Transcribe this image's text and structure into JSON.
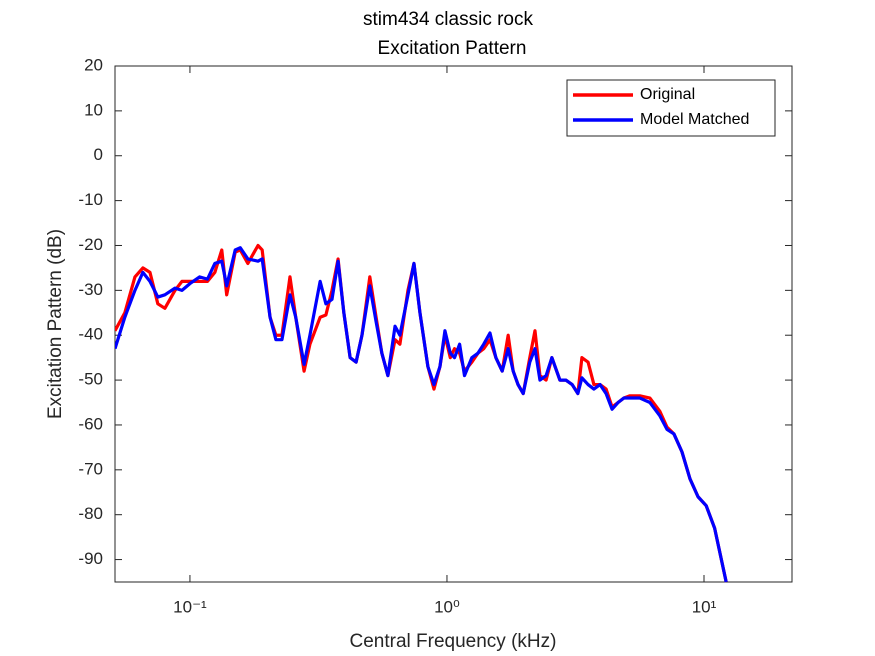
{
  "chart_data": {
    "type": "line",
    "title": "stim434 classic rock",
    "subtitle": "Excitation Pattern",
    "x_label": "Central Frequency (kHz)",
    "y_label": "Excitation Pattern (dB)",
    "x_scale": "log",
    "xlim": [
      0.0511,
      22
    ],
    "ylim": [
      -95,
      20
    ],
    "xticks": [
      {
        "value": 0.1,
        "label": "10⁻¹"
      },
      {
        "value": 1,
        "label": "10⁰"
      },
      {
        "value": 10,
        "label": "10¹"
      }
    ],
    "yticks": [
      20,
      10,
      0,
      -10,
      -20,
      -30,
      -40,
      -50,
      -60,
      -70,
      -80,
      -90
    ],
    "legend": "northeast",
    "x": [
      0.0511,
      0.0558,
      0.0611,
      0.0656,
      0.0699,
      0.075,
      0.0799,
      0.0875,
      0.0931,
      0.1,
      0.109,
      0.117,
      0.125,
      0.133,
      0.139,
      0.15,
      0.157,
      0.168,
      0.184,
      0.191,
      0.205,
      0.216,
      0.228,
      0.245,
      0.258,
      0.278,
      0.293,
      0.321,
      0.338,
      0.357,
      0.377,
      0.397,
      0.42,
      0.443,
      0.467,
      0.501,
      0.53,
      0.558,
      0.589,
      0.628,
      0.656,
      0.705,
      0.744,
      0.785,
      0.843,
      0.89,
      0.939,
      0.982,
      1.03,
      1.07,
      1.12,
      1.17,
      1.25,
      1.32,
      1.39,
      1.47,
      1.55,
      1.64,
      1.73,
      1.81,
      1.89,
      1.98,
      2.1,
      2.2,
      2.3,
      2.43,
      2.56,
      2.75,
      2.9,
      3.07,
      3.23,
      3.35,
      3.54,
      3.73,
      3.94,
      4.16,
      4.39,
      4.63,
      4.88,
      5.15,
      5.63,
      6.16,
      6.74,
      7.18,
      7.64,
      8.21,
      8.82,
      9.48,
      10.2,
      11.0,
      12.2
    ],
    "series": [
      {
        "name": "Original",
        "color": "#ff0000",
        "values": [
          -39,
          -35,
          -27,
          -25,
          -26,
          -33,
          -34,
          -30,
          -28,
          -28,
          -28,
          -28,
          -26,
          -21,
          -31,
          -21.5,
          -21,
          -24,
          -20,
          -21,
          -36,
          -40,
          -40,
          -27,
          -36,
          -48,
          -42,
          -36,
          -35.5,
          -30,
          -23,
          -35,
          -45,
          -46,
          -40,
          -27,
          -36,
          -44,
          -49,
          -41,
          -42,
          -30,
          -24,
          -35,
          -47,
          -52,
          -47,
          -40,
          -45,
          -43,
          -44,
          -48,
          -46,
          -44,
          -43,
          -41,
          -45,
          -48,
          -40,
          -48,
          -51,
          -53,
          -45,
          -39,
          -49,
          -50,
          -45,
          -50,
          -50,
          -51,
          -53,
          -45,
          -46,
          -51,
          -51,
          -52,
          -56,
          -55,
          -54,
          -53.5,
          -53.5,
          -54,
          -57,
          -60.5,
          -62,
          -66,
          -72,
          -76,
          -78,
          -83,
          -95
        ]
      },
      {
        "name": "Model Matched",
        "color": "#0000ff",
        "values": [
          -43,
          -36,
          -30,
          -26,
          -28,
          -31.5,
          -31,
          -29.5,
          -30,
          -28.5,
          -27,
          -27.5,
          -24,
          -23.5,
          -29,
          -21,
          -20.5,
          -23,
          -23.5,
          -23,
          -36,
          -41,
          -41,
          -31,
          -36,
          -46.5,
          -40,
          -28,
          -33,
          -32,
          -23.5,
          -35,
          -45,
          -46,
          -40,
          -29,
          -37,
          -44,
          -49,
          -38,
          -40,
          -31,
          -24,
          -35,
          -47,
          -51,
          -47,
          -39,
          -44,
          -45,
          -42,
          -49,
          -45,
          -44,
          -42,
          -39.5,
          -45,
          -48,
          -43,
          -48,
          -51,
          -53,
          -46,
          -43,
          -50,
          -49,
          -45,
          -50,
          -50,
          -51,
          -53,
          -49.5,
          -51,
          -52,
          -51,
          -53,
          -56.5,
          -55,
          -54,
          -54,
          -54,
          -55,
          -58,
          -61,
          -62,
          -66,
          -72,
          -76,
          -78,
          -83,
          -95
        ]
      }
    ]
  }
}
